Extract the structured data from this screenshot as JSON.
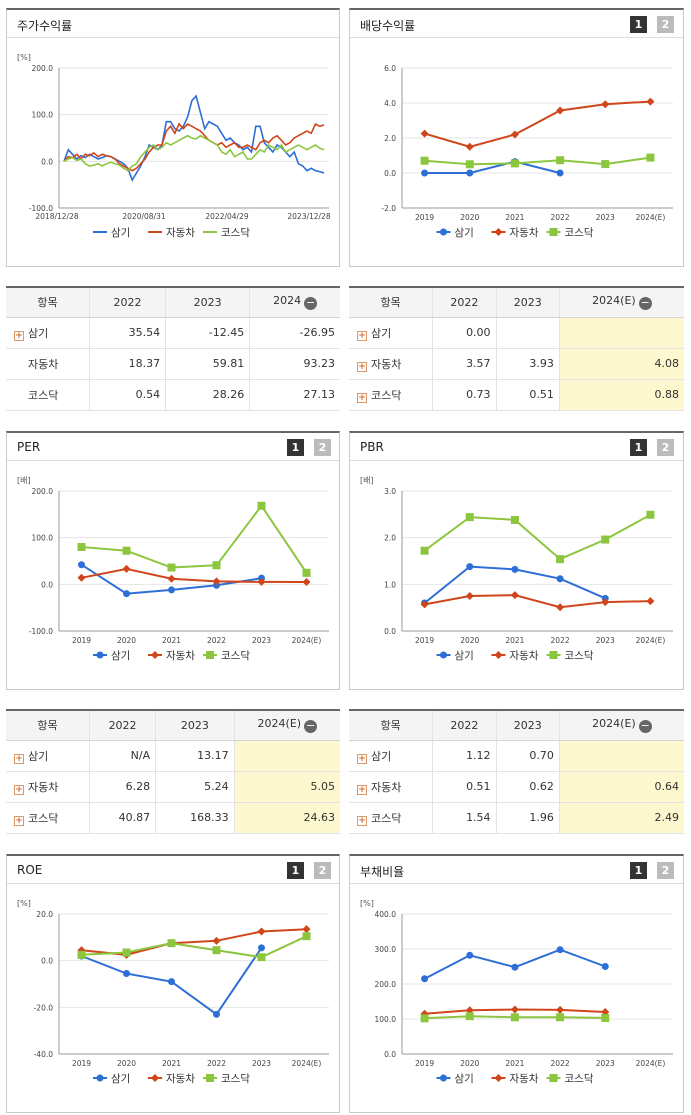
{
  "colors": {
    "samgi": "#2d6fd6",
    "auto": "#d0451b",
    "kosdaq": "#8cc63f"
  },
  "legend_labels": [
    "삼기",
    "자동차",
    "코스닥"
  ],
  "page_buttons": [
    "1",
    "2"
  ],
  "chart_data": [
    {
      "id": "stock_return",
      "type": "line",
      "title": "주가수익률",
      "ylabel": "[%]",
      "ylim": [
        -100,
        200
      ],
      "yticks": [
        "200.0",
        "100.0",
        "0.0",
        "-100.0"
      ],
      "x_ticks": [
        "2018/12/28",
        "2020/08/31",
        "2022/04/29",
        "2023/12/28"
      ],
      "series": [
        {
          "name": "삼기",
          "values": [
            0,
            25,
            15,
            5,
            12,
            8,
            15,
            10,
            5,
            8,
            12,
            10,
            5,
            0,
            -5,
            -15,
            -40,
            -25,
            -10,
            10,
            35,
            30,
            25,
            35,
            85,
            85,
            70,
            65,
            75,
            95,
            130,
            140,
            105,
            70,
            85,
            80,
            75,
            60,
            45,
            50,
            40,
            35,
            25,
            30,
            20,
            75,
            75,
            40,
            30,
            20,
            35,
            30,
            20,
            10,
            20,
            -5,
            -10,
            -20,
            -15,
            -20,
            -22,
            -25
          ]
        },
        {
          "name": "자동차",
          "values": [
            0,
            10,
            8,
            15,
            5,
            15,
            12,
            18,
            10,
            15,
            12,
            10,
            5,
            -5,
            -10,
            -15,
            -20,
            -15,
            -5,
            5,
            20,
            30,
            35,
            35,
            65,
            75,
            60,
            80,
            70,
            80,
            75,
            70,
            65,
            55,
            45,
            40,
            35,
            40,
            30,
            35,
            40,
            30,
            30,
            35,
            30,
            25,
            40,
            45,
            40,
            50,
            55,
            45,
            35,
            40,
            50,
            55,
            60,
            65,
            60,
            80,
            75,
            78
          ]
        },
        {
          "name": "코스닥",
          "values": [
            0,
            5,
            8,
            2,
            5,
            -5,
            -10,
            -8,
            -5,
            -10,
            -5,
            -2,
            -5,
            -8,
            -15,
            -20,
            -10,
            -5,
            10,
            20,
            30,
            35,
            25,
            30,
            40,
            35,
            40,
            45,
            50,
            55,
            50,
            48,
            55,
            50,
            45,
            40,
            35,
            20,
            15,
            25,
            10,
            15,
            20,
            5,
            5,
            15,
            25,
            20,
            35,
            30,
            25,
            35,
            20,
            25,
            30,
            35,
            30,
            25,
            30,
            35,
            28,
            25
          ]
        }
      ]
    },
    {
      "id": "dividend",
      "type": "line",
      "title": "배당수익률",
      "ylim": [
        -2,
        6
      ],
      "yticks": [
        "6.0",
        "4.0",
        "2.0",
        "0.0",
        "-2.0"
      ],
      "categories": [
        "2019",
        "2020",
        "2021",
        "2022",
        "2023",
        "2024(E)"
      ],
      "series": [
        {
          "name": "삼기",
          "values": [
            0,
            0,
            0.65,
            0,
            null,
            null
          ]
        },
        {
          "name": "자동차",
          "values": [
            2.25,
            1.5,
            2.2,
            3.57,
            3.93,
            4.08
          ]
        },
        {
          "name": "코스닥",
          "values": [
            0.7,
            0.5,
            0.55,
            0.73,
            0.51,
            0.88
          ]
        }
      ]
    },
    {
      "id": "per",
      "type": "line",
      "title": "PER",
      "ylabel": "[배]",
      "ylim": [
        -100,
        200
      ],
      "yticks": [
        "200.0",
        "100.0",
        "0.0",
        "-100.0"
      ],
      "categories": [
        "2019",
        "2020",
        "2021",
        "2022",
        "2023",
        "2024(E)"
      ],
      "series": [
        {
          "name": "삼기",
          "values": [
            42,
            -20,
            -12,
            -2,
            13.17,
            null
          ]
        },
        {
          "name": "자동차",
          "values": [
            14,
            33,
            12,
            6.28,
            5.24,
            5.05
          ]
        },
        {
          "name": "코스닥",
          "values": [
            80,
            72,
            36,
            40.87,
            168.33,
            24.63
          ]
        }
      ]
    },
    {
      "id": "pbr",
      "type": "line",
      "title": "PBR",
      "ylabel": "[배]",
      "ylim": [
        0,
        3
      ],
      "yticks": [
        "3.0",
        "2.0",
        "1.0",
        "0.0"
      ],
      "categories": [
        "2019",
        "2020",
        "2021",
        "2022",
        "2023",
        "2024(E)"
      ],
      "series": [
        {
          "name": "삼기",
          "values": [
            0.6,
            1.38,
            1.32,
            1.12,
            0.7,
            null
          ]
        },
        {
          "name": "자동차",
          "values": [
            0.57,
            0.75,
            0.77,
            0.51,
            0.62,
            0.64
          ]
        },
        {
          "name": "코스닥",
          "values": [
            1.72,
            2.44,
            2.38,
            1.54,
            1.96,
            2.49
          ]
        }
      ]
    },
    {
      "id": "roe",
      "type": "line",
      "title": "ROE",
      "ylabel": "[%]",
      "ylim": [
        -40,
        20
      ],
      "yticks": [
        "20.0",
        "0.0",
        "-20.0",
        "-40.0"
      ],
      "categories": [
        "2019",
        "2020",
        "2021",
        "2022",
        "2023",
        "2024(E)"
      ],
      "series": [
        {
          "name": "삼기",
          "values": [
            2,
            -5.5,
            -9,
            -23,
            5.5,
            null
          ]
        },
        {
          "name": "자동차",
          "values": [
            4.5,
            2.5,
            7.5,
            8.5,
            12.5,
            13.5
          ]
        },
        {
          "name": "코스닥",
          "values": [
            2.5,
            3.5,
            7.5,
            4.5,
            1.5,
            10.5
          ]
        }
      ]
    },
    {
      "id": "debt",
      "type": "line",
      "title": "부채비율",
      "ylabel": "[%]",
      "ylim": [
        0,
        400
      ],
      "yticks": [
        "400.0",
        "300.0",
        "200.0",
        "100.0",
        "0.0"
      ],
      "categories": [
        "2019",
        "2020",
        "2021",
        "2022",
        "2023",
        "2024(E)"
      ],
      "series": [
        {
          "name": "삼기",
          "values": [
            215,
            282,
            248,
            298,
            250,
            null
          ]
        },
        {
          "name": "자동차",
          "values": [
            115,
            125,
            127,
            126,
            120,
            null
          ]
        },
        {
          "name": "코스닥",
          "values": [
            102,
            108,
            105,
            105,
            103,
            null
          ]
        }
      ]
    }
  ],
  "tables": {
    "stock_return": {
      "headers": [
        "항목",
        "2022",
        "2023",
        "2024"
      ],
      "rows": [
        {
          "name": "삼기",
          "values": [
            "35.54",
            "-12.45",
            "-26.95"
          ]
        },
        {
          "name": "자동차",
          "values": [
            "18.37",
            "59.81",
            "93.23"
          ]
        },
        {
          "name": "코스닥",
          "values": [
            "0.54",
            "28.26",
            "27.13"
          ]
        }
      ]
    },
    "dividend": {
      "headers": [
        "항목",
        "2022",
        "2023",
        "2024(E)"
      ],
      "rows": [
        {
          "name": "삼기",
          "values": [
            "0.00",
            "",
            ""
          ]
        },
        {
          "name": "자동차",
          "values": [
            "3.57",
            "3.93",
            "4.08"
          ]
        },
        {
          "name": "코스닥",
          "values": [
            "0.73",
            "0.51",
            "0.88"
          ]
        }
      ]
    },
    "per": {
      "headers": [
        "항목",
        "2022",
        "2023",
        "2024(E)"
      ],
      "rows": [
        {
          "name": "삼기",
          "values": [
            "N/A",
            "13.17",
            ""
          ]
        },
        {
          "name": "자동차",
          "values": [
            "6.28",
            "5.24",
            "5.05"
          ]
        },
        {
          "name": "코스닥",
          "values": [
            "40.87",
            "168.33",
            "24.63"
          ]
        }
      ]
    },
    "pbr": {
      "headers": [
        "항목",
        "2022",
        "2023",
        "2024(E)"
      ],
      "rows": [
        {
          "name": "삼기",
          "values": [
            "1.12",
            "0.70",
            ""
          ]
        },
        {
          "name": "자동차",
          "values": [
            "0.51",
            "0.62",
            "0.64"
          ]
        },
        {
          "name": "코스닥",
          "values": [
            "1.54",
            "1.96",
            "2.49"
          ]
        }
      ]
    }
  }
}
